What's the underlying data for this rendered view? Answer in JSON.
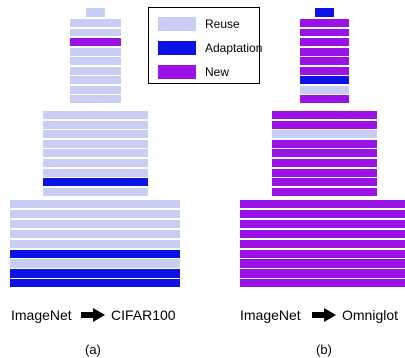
{
  "colors": {
    "Reuse": "#c8cdf3",
    "Adaptation": "#0d12e6",
    "New": "#9a12e6"
  },
  "legend": [
    {
      "label": "Reuse",
      "color": "#c8cdf3"
    },
    {
      "label": "Adaptation",
      "color": "#0d12e6"
    },
    {
      "label": "New",
      "color": "#9a12e6"
    }
  ],
  "panels": [
    {
      "caption_source": "ImageNet",
      "caption_target": "CIFAR100",
      "arrow_icon": "right-arrow-icon",
      "sublabel": "(a)",
      "stages": [
        [
          "Reuse"
        ],
        [
          "Reuse",
          "Reuse",
          "New",
          "Reuse",
          "Reuse",
          "Reuse",
          "Reuse",
          "Reuse",
          "Reuse"
        ],
        [
          "Reuse",
          "Reuse",
          "Reuse",
          "Reuse",
          "Reuse",
          "Reuse",
          "Reuse",
          "Adaptation",
          "Reuse"
        ],
        [
          "Reuse",
          "Reuse",
          "Reuse",
          "Reuse",
          "Reuse",
          "Adaptation",
          "Reuse",
          "Adaptation",
          "Adaptation"
        ]
      ]
    },
    {
      "caption_source": "ImageNet",
      "caption_target": "Omniglot",
      "arrow_icon": "right-arrow-icon",
      "sublabel": "(b)",
      "stages": [
        [
          "Adaptation"
        ],
        [
          "New",
          "New",
          "New",
          "New",
          "New",
          "New",
          "Adaptation",
          "Reuse",
          "New"
        ],
        [
          "New",
          "New",
          "Reuse",
          "New",
          "New",
          "New",
          "New",
          "New",
          "New"
        ],
        [
          "New",
          "New",
          "New",
          "New",
          "New",
          "New",
          "New",
          "New",
          "New"
        ]
      ]
    }
  ]
}
